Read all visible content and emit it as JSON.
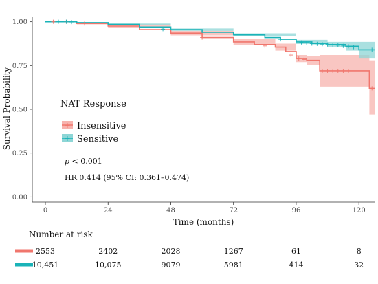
{
  "chart_data": {
    "type": "line",
    "xlabel": "Time (months)",
    "ylabel": "Survival Probability",
    "xlim": [
      -5,
      126
    ],
    "ylim": [
      -0.03,
      1.03
    ],
    "x_ticks": [
      0,
      24,
      48,
      72,
      96,
      120
    ],
    "y_ticks": [
      0.0,
      0.25,
      0.5,
      0.75,
      1.0
    ],
    "y_tick_labels": [
      "0.00",
      "0.25",
      "0.50",
      "0.75",
      "1.00"
    ],
    "grid": false,
    "legend": {
      "title": "NAT Response",
      "placement": "center-left"
    },
    "series": [
      {
        "name": "Insensitive",
        "color": "#f0766d",
        "band_color": "#f7b3ae",
        "points": [
          [
            0,
            1.0
          ],
          [
            6,
            1.0
          ],
          [
            12,
            0.99
          ],
          [
            24,
            0.975
          ],
          [
            36,
            0.955
          ],
          [
            48,
            0.935
          ],
          [
            60,
            0.91
          ],
          [
            72,
            0.885
          ],
          [
            80,
            0.87
          ],
          [
            88,
            0.855
          ],
          [
            92,
            0.83
          ],
          [
            96,
            0.79
          ],
          [
            100,
            0.78
          ],
          [
            105,
            0.72
          ],
          [
            118,
            0.72
          ],
          [
            124,
            0.62
          ],
          [
            126,
            0.62
          ]
        ],
        "lower": [
          [
            0,
            1.0
          ],
          [
            12,
            0.985
          ],
          [
            24,
            0.965
          ],
          [
            48,
            0.922
          ],
          [
            72,
            0.868
          ],
          [
            88,
            0.835
          ],
          [
            96,
            0.77
          ],
          [
            100,
            0.755
          ],
          [
            105,
            0.63
          ],
          [
            118,
            0.63
          ],
          [
            124,
            0.47
          ],
          [
            126,
            0.47
          ]
        ],
        "upper": [
          [
            0,
            1.0
          ],
          [
            12,
            0.995
          ],
          [
            24,
            0.985
          ],
          [
            48,
            0.948
          ],
          [
            72,
            0.902
          ],
          [
            88,
            0.875
          ],
          [
            96,
            0.81
          ],
          [
            100,
            0.805
          ],
          [
            105,
            0.81
          ],
          [
            118,
            0.81
          ],
          [
            124,
            0.78
          ],
          [
            126,
            0.78
          ]
        ],
        "censor_marks": [
          [
            3,
            1.0
          ],
          [
            8,
            1.0
          ],
          [
            15,
            0.99
          ],
          [
            60,
            0.91
          ],
          [
            84,
            0.862
          ],
          [
            94,
            0.81
          ],
          [
            97,
            0.79
          ],
          [
            99,
            0.785
          ],
          [
            106,
            0.72
          ],
          [
            108,
            0.72
          ],
          [
            110,
            0.72
          ],
          [
            112,
            0.72
          ],
          [
            114,
            0.72
          ],
          [
            116,
            0.72
          ],
          [
            125,
            0.62
          ]
        ]
      },
      {
        "name": "Sensitive",
        "color": "#1ab3b8",
        "band_color": "#8ed6d6",
        "points": [
          [
            0,
            1.0
          ],
          [
            12,
            0.995
          ],
          [
            24,
            0.985
          ],
          [
            36,
            0.97
          ],
          [
            48,
            0.955
          ],
          [
            60,
            0.94
          ],
          [
            72,
            0.925
          ],
          [
            84,
            0.91
          ],
          [
            90,
            0.9
          ],
          [
            96,
            0.885
          ],
          [
            102,
            0.875
          ],
          [
            108,
            0.87
          ],
          [
            115,
            0.86
          ],
          [
            120,
            0.84
          ],
          [
            126,
            0.84
          ]
        ],
        "lower": [
          [
            0,
            1.0
          ],
          [
            24,
            0.98
          ],
          [
            48,
            0.948
          ],
          [
            72,
            0.916
          ],
          [
            96,
            0.873
          ],
          [
            108,
            0.855
          ],
          [
            115,
            0.835
          ],
          [
            120,
            0.79
          ],
          [
            126,
            0.79
          ]
        ],
        "upper": [
          [
            0,
            1.0
          ],
          [
            24,
            0.99
          ],
          [
            48,
            0.962
          ],
          [
            72,
            0.934
          ],
          [
            96,
            0.897
          ],
          [
            108,
            0.885
          ],
          [
            115,
            0.885
          ],
          [
            120,
            0.885
          ],
          [
            126,
            0.885
          ]
        ],
        "censor_marks": [
          [
            5,
            1.0
          ],
          [
            8,
            1.0
          ],
          [
            10,
            0.998
          ],
          [
            45,
            0.958
          ],
          [
            90,
            0.9
          ],
          [
            98,
            0.882
          ],
          [
            100,
            0.88
          ],
          [
            102,
            0.875
          ],
          [
            104,
            0.874
          ],
          [
            106,
            0.872
          ],
          [
            108,
            0.87
          ],
          [
            110,
            0.868
          ],
          [
            112,
            0.866
          ],
          [
            114,
            0.862
          ],
          [
            116,
            0.86
          ],
          [
            118,
            0.855
          ],
          [
            125,
            0.84
          ]
        ]
      }
    ],
    "annotations": {
      "p_value_label": "p",
      "p_value_rest": " < 0.001",
      "hazard_ratio": "HR 0.414 (95% CI: 0.361–0.474)"
    },
    "risk_table": {
      "title": "Number at risk",
      "rows": [
        {
          "name": "Insensitive",
          "color": "#f0766d",
          "values": [
            "2553",
            "2402",
            "2028",
            "1267",
            "61",
            "8"
          ]
        },
        {
          "name": "Sensitive",
          "color": "#1ab3b8",
          "values": [
            "10,451",
            "10,075",
            "9079",
            "5981",
            "414",
            "32"
          ]
        }
      ]
    }
  }
}
